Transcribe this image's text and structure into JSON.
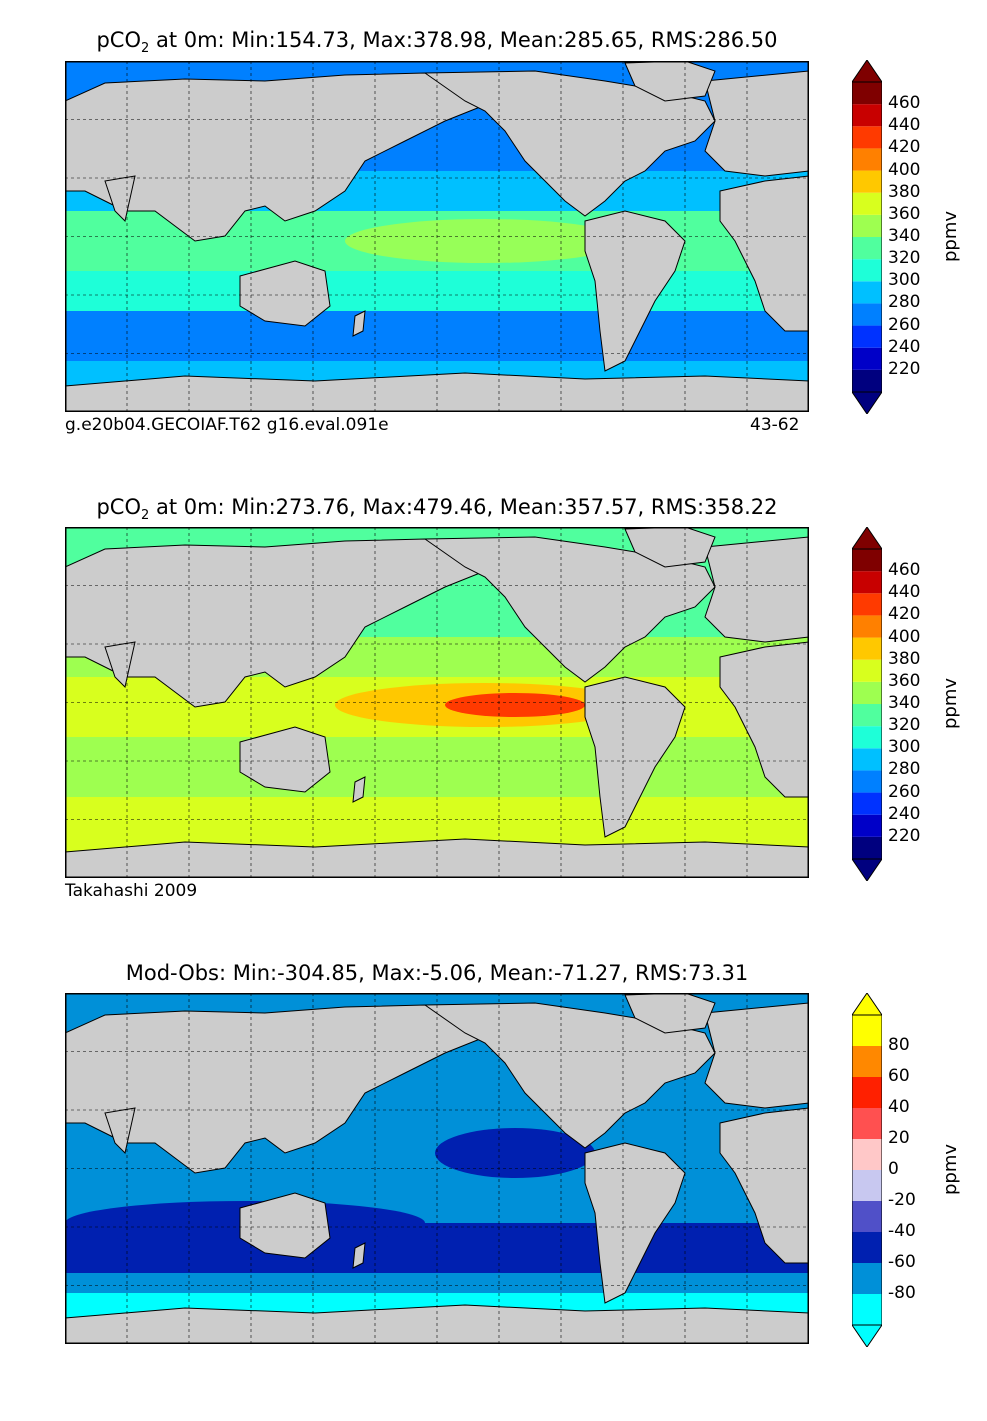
{
  "panels": [
    {
      "title_prefix": "pCO",
      "title_sub": "2",
      "title_suffix": " at 0m: Min:154.73, Max:378.98, Mean:285.65, RMS:286.50",
      "left_note": "g.e20b04.GECOIAF.T62 g16.eval.091e",
      "right_note": "43-62",
      "colorbar": {
        "unit": "ppmv",
        "ticks": [
          "220",
          "240",
          "260",
          "280",
          "300",
          "320",
          "340",
          "360",
          "380",
          "400",
          "420",
          "440",
          "460"
        ],
        "colors": [
          "#00007f",
          "#0000c8",
          "#0032ff",
          "#0080ff",
          "#00c0ff",
          "#1effd8",
          "#50ff9e",
          "#9eff50",
          "#d8ff1e",
          "#ffc800",
          "#ff8000",
          "#ff3a00",
          "#c80000",
          "#7f0000"
        ],
        "over": "#7f0000",
        "under": "#00007f"
      },
      "field": "model"
    },
    {
      "title_prefix": "pCO",
      "title_sub": "2",
      "title_suffix": " at 0m: Min:273.76, Max:479.46, Mean:357.57, RMS:358.22",
      "left_note": "Takahashi 2009",
      "right_note": "",
      "colorbar": {
        "unit": "ppmv",
        "ticks": [
          "220",
          "240",
          "260",
          "280",
          "300",
          "320",
          "340",
          "360",
          "380",
          "400",
          "420",
          "440",
          "460"
        ],
        "colors": [
          "#00007f",
          "#0000c8",
          "#0032ff",
          "#0080ff",
          "#00c0ff",
          "#1effd8",
          "#50ff9e",
          "#9eff50",
          "#d8ff1e",
          "#ffc800",
          "#ff8000",
          "#ff3a00",
          "#c80000",
          "#7f0000"
        ],
        "over": "#7f0000",
        "under": "#00007f"
      },
      "field": "obs"
    },
    {
      "title_prefix": "Mod-Obs: Min:-304.85, Max:-5.06, Mean:-71.27, RMS:73.31",
      "title_sub": "",
      "title_suffix": "",
      "left_note": "",
      "right_note": "",
      "colorbar": {
        "unit": "ppmv",
        "ticks": [
          "-80",
          "-60",
          "-40",
          "-20",
          "0",
          "20",
          "40",
          "60",
          "80"
        ],
        "colors": [
          "#00ffff",
          "#0090d8",
          "#0020b0",
          "#5050c8",
          "#c8c8f0",
          "#ffc8c8",
          "#ff5050",
          "#ff2000",
          "#ff8800",
          "#ffff00"
        ],
        "over": "#ffff00",
        "under": "#00ffff"
      },
      "field": "diff"
    }
  ],
  "colors": {
    "land": "#cccccc",
    "coast": "#000000",
    "grid": "#000000",
    "nodata": "#ffffff"
  }
}
